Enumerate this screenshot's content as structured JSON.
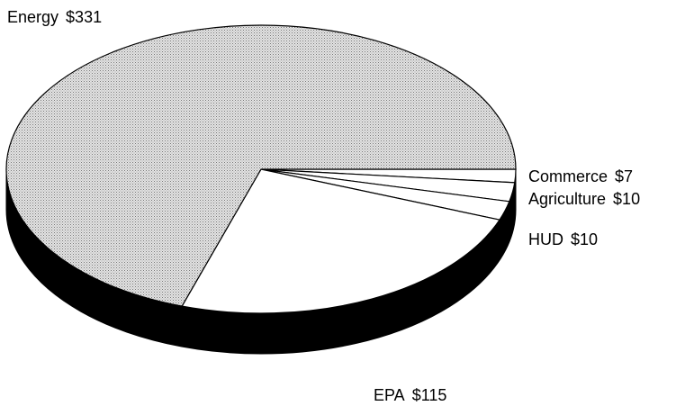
{
  "chart_data": {
    "type": "pie",
    "categories": [
      "Commerce",
      "Agriculture",
      "HUD",
      "EPA",
      "Energy"
    ],
    "values": [
      7,
      10,
      10,
      115,
      331
    ],
    "value_labels": [
      "$7",
      "$10",
      "$10",
      "$115",
      "$331"
    ],
    "colors": [
      "#ffffff",
      "#ffffff",
      "#ffffff",
      "#ffffff",
      "#c8c8c8"
    ]
  }
}
